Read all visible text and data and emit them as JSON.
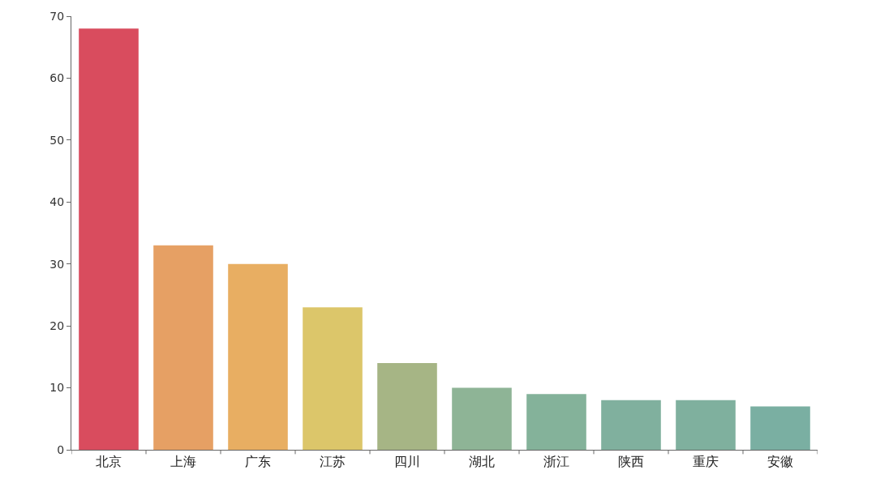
{
  "chart_data": {
    "type": "bar",
    "categories": [
      "北京",
      "上海",
      "广东",
      "江苏",
      "四川",
      "湖北",
      "浙江",
      "陕西",
      "重庆",
      "安徽"
    ],
    "values": [
      68,
      33,
      30,
      23,
      14,
      10,
      9,
      8,
      8,
      7
    ],
    "colors": [
      "#d94c5e",
      "#e6a064",
      "#e8ae62",
      "#dcc66a",
      "#a6b585",
      "#8eb496",
      "#84b29a",
      "#80b09e",
      "#7fb09e",
      "#7aafa2"
    ],
    "ylim": [
      0,
      70
    ],
    "yticks": [
      0,
      10,
      20,
      30,
      40,
      50,
      60,
      70
    ]
  }
}
